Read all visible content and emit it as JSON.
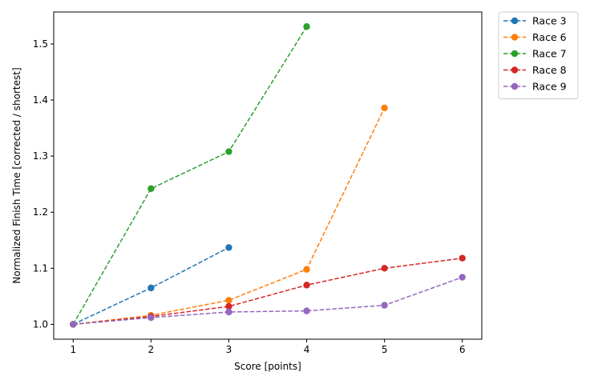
{
  "chart_data": {
    "type": "line",
    "title": "",
    "xlabel": "Score [points]",
    "ylabel": "Normalized Finish Time [corrected / shortest]",
    "xlim": [
      0.75,
      6.25
    ],
    "ylim": [
      0.9735,
      1.557
    ],
    "xticks": [
      1,
      2,
      3,
      4,
      5,
      6
    ],
    "yticks": [
      1.0,
      1.1,
      1.2,
      1.3,
      1.4,
      1.5
    ],
    "xtick_labels": [
      "1",
      "2",
      "3",
      "4",
      "5",
      "6"
    ],
    "ytick_labels": [
      "1.0",
      "1.1",
      "1.2",
      "1.3",
      "1.4",
      "1.5"
    ],
    "line_style": "dashed",
    "marker": "circle",
    "grid": false,
    "legend_position": "outside-top-right",
    "series": [
      {
        "name": "Race 3",
        "color": "#1f77b4",
        "x": [
          1,
          2,
          3
        ],
        "y": [
          1.0,
          1.065,
          1.137
        ]
      },
      {
        "name": "Race 6",
        "color": "#ff7f0e",
        "x": [
          1,
          2,
          3,
          4,
          5
        ],
        "y": [
          1.0,
          1.016,
          1.043,
          1.098,
          1.386
        ]
      },
      {
        "name": "Race 7",
        "color": "#2ca02c",
        "x": [
          1,
          2,
          3,
          4
        ],
        "y": [
          1.0,
          1.242,
          1.308,
          1.531
        ]
      },
      {
        "name": "Race 8",
        "color": "#d62728",
        "x": [
          1,
          2,
          3,
          4,
          5,
          6
        ],
        "y": [
          1.0,
          1.014,
          1.032,
          1.07,
          1.1,
          1.118
        ]
      },
      {
        "name": "Race 9",
        "color": "#9467bd",
        "x": [
          1,
          2,
          3,
          4,
          5,
          6
        ],
        "y": [
          1.0,
          1.012,
          1.022,
          1.024,
          1.034,
          1.084
        ]
      }
    ]
  }
}
